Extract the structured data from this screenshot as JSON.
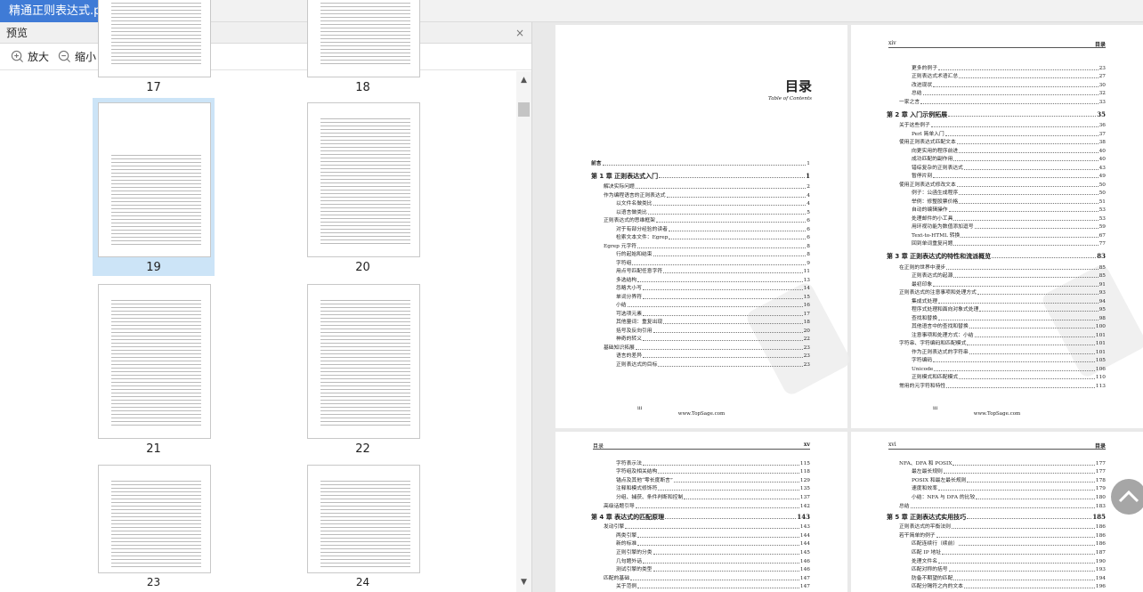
{
  "tab": {
    "title": "精通正则表达式.pdf",
    "close": "×",
    "add": "+"
  },
  "preview": {
    "title": "预览",
    "close": "×",
    "zoom_in": "放大",
    "zoom_out": "缩小"
  },
  "thumbnails": [
    {
      "page": "17"
    },
    {
      "page": "18"
    },
    {
      "page": "19",
      "selected": true
    },
    {
      "page": "20"
    },
    {
      "page": "21"
    },
    {
      "page": "22"
    },
    {
      "page": "23"
    },
    {
      "page": "24"
    }
  ],
  "colors": {
    "accent": "#3f7bd6",
    "selected": "#cce4f7"
  },
  "pages": [
    {
      "title": "目录",
      "subtitle": "Table of Contents",
      "footer_num": "iii",
      "footer_url": "www.TopSage.com",
      "entries": [
        {
          "t": "前言",
          "p": "1",
          "l": 0
        },
        {
          "t": "第 1 章   正则表达式入门",
          "p": "1",
          "l": "ch"
        },
        {
          "t": "解决实际问题",
          "p": "2",
          "l": 1
        },
        {
          "t": "作为编程语言的正则表达式",
          "p": "4",
          "l": 1
        },
        {
          "t": "以文件名做类比",
          "p": "4",
          "l": 2
        },
        {
          "t": "以语言做类比",
          "p": "5",
          "l": 2
        },
        {
          "t": "正则表达式的思维框架",
          "p": "6",
          "l": 1
        },
        {
          "t": "对于有部分经验的读者",
          "p": "6",
          "l": 2
        },
        {
          "t": "检索文本文件：Egrep",
          "p": "6",
          "l": 2
        },
        {
          "t": "Egrep 元字符",
          "p": "8",
          "l": 1
        },
        {
          "t": "行的起始和结束",
          "p": "8",
          "l": 2
        },
        {
          "t": "字符组",
          "p": "9",
          "l": 2
        },
        {
          "t": "用点号匹配任意字符",
          "p": "11",
          "l": 2
        },
        {
          "t": "多选结构",
          "p": "13",
          "l": 2
        },
        {
          "t": "忽略大小写",
          "p": "14",
          "l": 2
        },
        {
          "t": "单词分界符",
          "p": "15",
          "l": 2
        },
        {
          "t": "小结",
          "p": "16",
          "l": 2
        },
        {
          "t": "可选项元素",
          "p": "17",
          "l": 2
        },
        {
          "t": "其他量词：重复出现",
          "p": "18",
          "l": 2
        },
        {
          "t": "括号及反向引用",
          "p": "20",
          "l": 2
        },
        {
          "t": "神奇的转义",
          "p": "22",
          "l": 2
        },
        {
          "t": "基础知识拓展",
          "p": "23",
          "l": 1
        },
        {
          "t": "语言的差异",
          "p": "23",
          "l": 2
        },
        {
          "t": "正则表达式的目标",
          "p": "23",
          "l": 2
        }
      ]
    },
    {
      "header_left": "xiv",
      "header_right": "目录",
      "footer_num": "iii",
      "footer_url": "www.TopSage.com",
      "entries": [
        {
          "t": "更多的例子",
          "p": "23",
          "l": 2
        },
        {
          "t": "正则表达式术语汇总",
          "p": "27",
          "l": 2
        },
        {
          "t": "改进现状",
          "p": "30",
          "l": 2
        },
        {
          "t": "总结",
          "p": "32",
          "l": 2
        },
        {
          "t": "一家之言",
          "p": "33",
          "l": 1
        },
        {
          "t": "第 2 章   入门示例拓展",
          "p": "35",
          "l": "ch"
        },
        {
          "t": "关于这些例子",
          "p": "36",
          "l": 1
        },
        {
          "t": "Perl 简单入门",
          "p": "37",
          "l": 2
        },
        {
          "t": "使用正则表达式匹配文本",
          "p": "38",
          "l": 1
        },
        {
          "t": "向更实用的程序前进",
          "p": "40",
          "l": 2
        },
        {
          "t": "成功匹配的副作用",
          "p": "40",
          "l": 2
        },
        {
          "t": "错综复杂的正则表达式",
          "p": "43",
          "l": 2
        },
        {
          "t": "暂停片刻",
          "p": "49",
          "l": 2
        },
        {
          "t": "使用正则表达式修改文本",
          "p": "50",
          "l": 1
        },
        {
          "t": "例子：公函生成程序",
          "p": "50",
          "l": 2
        },
        {
          "t": "举例：修整股票价格",
          "p": "51",
          "l": 2
        },
        {
          "t": "自动的编辑操作",
          "p": "53",
          "l": 2
        },
        {
          "t": "处理邮件的小工具",
          "p": "53",
          "l": 2
        },
        {
          "t": "用环视功能为数值添加逗号",
          "p": "59",
          "l": 2
        },
        {
          "t": "Text-to-HTML 转换",
          "p": "67",
          "l": 2
        },
        {
          "t": "回到单词重复问题",
          "p": "77",
          "l": 2
        },
        {
          "t": "第 3 章   正则表达式的特性和流派概览",
          "p": "83",
          "l": "ch"
        },
        {
          "t": "在正则的世界中漫步",
          "p": "85",
          "l": 1
        },
        {
          "t": "正则表达式的起源",
          "p": "85",
          "l": 2
        },
        {
          "t": "最初印象",
          "p": "91",
          "l": 2
        },
        {
          "t": "正则表达式的注意事项和处理方式",
          "p": "93",
          "l": 1
        },
        {
          "t": "集成式处理",
          "p": "94",
          "l": 2
        },
        {
          "t": "程序式处理和面向对象式处理",
          "p": "95",
          "l": 2
        },
        {
          "t": "查找和替换",
          "p": "98",
          "l": 2
        },
        {
          "t": "其他语言中的查找和替换",
          "p": "100",
          "l": 2
        },
        {
          "t": "注意事项和处理方式：小结",
          "p": "101",
          "l": 2
        },
        {
          "t": "字符串、字符编码和匹配模式",
          "p": "101",
          "l": 1
        },
        {
          "t": "作为正则表达式的字符串",
          "p": "101",
          "l": 2
        },
        {
          "t": "字符编码",
          "p": "105",
          "l": 2
        },
        {
          "t": "Unicode",
          "p": "106",
          "l": 2
        },
        {
          "t": "正则模式和匹配模式",
          "p": "110",
          "l": 2
        },
        {
          "t": "常用的元字符和特性",
          "p": "113",
          "l": 1
        }
      ]
    },
    {
      "header_left": "目录",
      "header_right": "xv",
      "entries": [
        {
          "t": "字符表示法",
          "p": "115",
          "l": 2
        },
        {
          "t": "字符组及相关结构",
          "p": "118",
          "l": 2
        },
        {
          "t": "锚点及其他“零长度断言”",
          "p": "129",
          "l": 2
        },
        {
          "t": "注释和模式修饰符",
          "p": "135",
          "l": 2
        },
        {
          "t": "分组、捕获、条件判断和控制",
          "p": "137",
          "l": 2
        },
        {
          "t": "高级话题引导",
          "p": "142",
          "l": 1
        },
        {
          "t": "第 4 章   表达式的匹配原理",
          "p": "143",
          "l": "ch"
        },
        {
          "t": "发动引擎",
          "p": "143",
          "l": 1
        },
        {
          "t": "两类引擎",
          "p": "144",
          "l": 2
        },
        {
          "t": "新的标准",
          "p": "144",
          "l": 2
        },
        {
          "t": "正则引擎的分类",
          "p": "145",
          "l": 2
        },
        {
          "t": "几句题外话",
          "p": "146",
          "l": 2
        },
        {
          "t": "测试引擎的类型",
          "p": "146",
          "l": 2
        },
        {
          "t": "匹配的基础",
          "p": "147",
          "l": 1
        },
        {
          "t": "关于范例",
          "p": "147",
          "l": 2
        }
      ]
    },
    {
      "header_left": "xvi",
      "header_right": "目录",
      "entries": [
        {
          "t": "NFA、DFA 和 POSIX",
          "p": "177",
          "l": 1
        },
        {
          "t": "最左最长规则",
          "p": "177",
          "l": 2
        },
        {
          "t": "POSIX 和最左最长规则",
          "p": "178",
          "l": 2
        },
        {
          "t": "速度和效率",
          "p": "179",
          "l": 2
        },
        {
          "t": "小结：NFA 与 DFA 的比较",
          "p": "180",
          "l": 2
        },
        {
          "t": "总结",
          "p": "183",
          "l": 1
        },
        {
          "t": "第 5 章   正则表达式实用技巧",
          "p": "185",
          "l": "ch"
        },
        {
          "t": "正则表达式的平衡法则",
          "p": "186",
          "l": 1
        },
        {
          "t": "若干简单的例子",
          "p": "186",
          "l": 1
        },
        {
          "t": "匹配连续行（续前）",
          "p": "186",
          "l": 2
        },
        {
          "t": "匹配 IP 地址",
          "p": "187",
          "l": 2
        },
        {
          "t": "处理文件名",
          "p": "190",
          "l": 2
        },
        {
          "t": "匹配对称的括号",
          "p": "193",
          "l": 2
        },
        {
          "t": "防备不期望的匹配",
          "p": "194",
          "l": 2
        },
        {
          "t": "匹配分隔符之内的文本",
          "p": "196",
          "l": 2
        }
      ]
    }
  ]
}
